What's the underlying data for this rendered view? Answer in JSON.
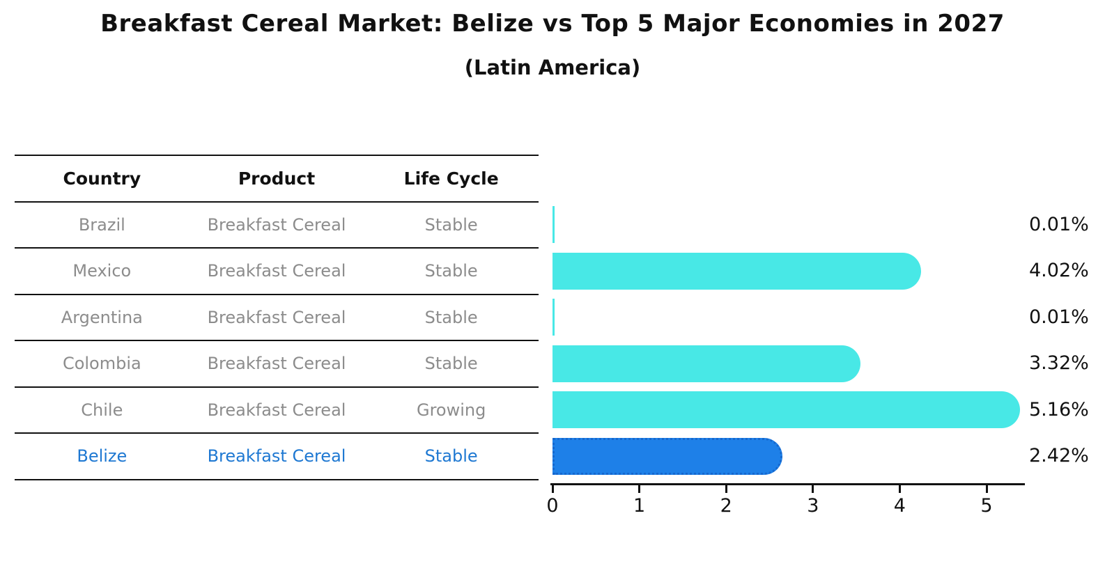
{
  "page": {
    "title": "Breakfast Cereal Market: Belize vs Top 5 Major Economies in 2027",
    "subtitle": "(Latin America)"
  },
  "table": {
    "headers": [
      "Country",
      "Product",
      "Life Cycle"
    ],
    "rows": [
      {
        "country": "Brazil",
        "product": "Breakfast Cereal",
        "life_cycle": "Stable",
        "highlighted": false
      },
      {
        "country": "Mexico",
        "product": "Breakfast Cereal",
        "life_cycle": "Stable",
        "highlighted": false
      },
      {
        "country": "Argentina",
        "product": "Breakfast Cereal",
        "life_cycle": "Stable",
        "highlighted": false
      },
      {
        "country": "Colombia",
        "product": "Breakfast Cereal",
        "life_cycle": "Stable",
        "highlighted": false
      },
      {
        "country": "Chile",
        "product": "Breakfast Cereal",
        "life_cycle": "Growing",
        "highlighted": false
      },
      {
        "country": "Belize",
        "product": "Breakfast Cereal",
        "life_cycle": "Stable",
        "highlighted": true
      }
    ]
  },
  "chart_data": {
    "type": "bar",
    "orientation": "horizontal",
    "title": "Breakfast Cereal Market: Belize vs Top 5 Major Economies in 2027",
    "subtitle": "(Latin America)",
    "categories": [
      "Brazil",
      "Mexico",
      "Argentina",
      "Colombia",
      "Chile",
      "Belize"
    ],
    "values": [
      0.01,
      4.02,
      0.01,
      3.32,
      5.16,
      2.42
    ],
    "value_labels": [
      "0.01%",
      "4.02%",
      "0.01%",
      "3.32%",
      "5.16%",
      "2.42%"
    ],
    "x_ticks": [
      "0",
      "1",
      "2",
      "3",
      "4",
      "5"
    ],
    "xlim": [
      0,
      5.45
    ],
    "grid": false,
    "legend": false,
    "highlight_category": "Belize",
    "colors": {
      "bar": "#48E8E6",
      "highlight_bar": "#1E80E8",
      "highlight_bar_border": "#1668CE",
      "highlight_text": "#1E78D2",
      "table_text": "#8C8C8C",
      "axis_text": "#111111"
    }
  }
}
